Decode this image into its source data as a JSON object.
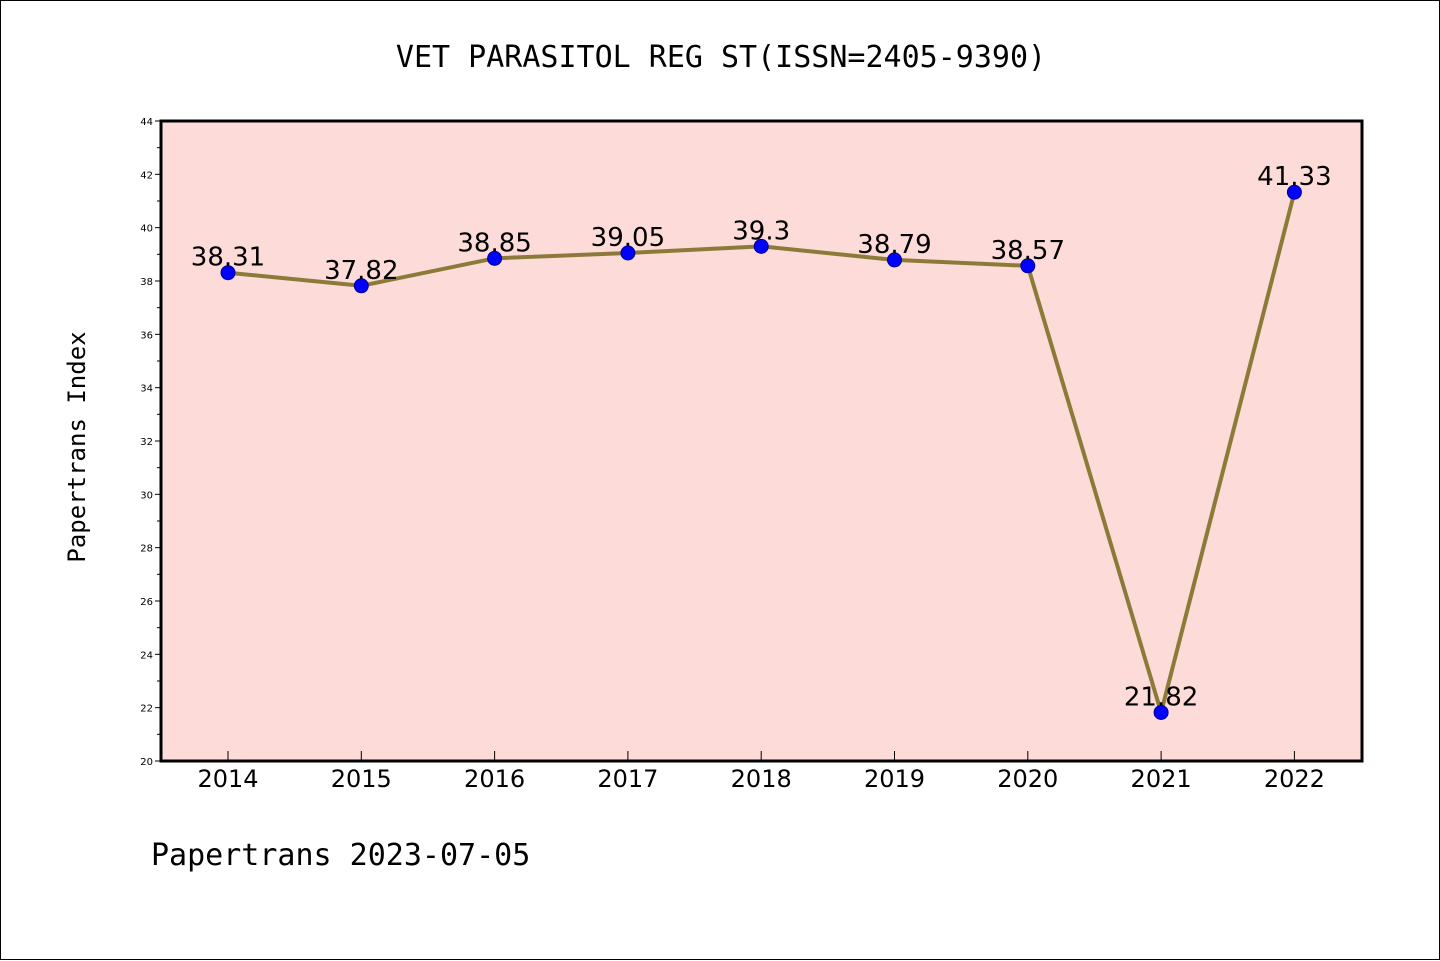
{
  "chart_data": {
    "type": "line",
    "title": "VET PARASITOL REG ST(ISSN=2405-9390)",
    "xlabel": "",
    "ylabel": "Papertrans Index",
    "categories": [
      "2014",
      "2015",
      "2016",
      "2017",
      "2018",
      "2019",
      "2020",
      "2021",
      "2022"
    ],
    "values": [
      38.31,
      37.82,
      38.85,
      39.05,
      39.3,
      38.79,
      38.57,
      21.82,
      41.33
    ],
    "value_labels": [
      "38.31",
      "37.82",
      "38.85",
      "39.05",
      "39.3",
      "38.79",
      "38.57",
      "21.82",
      "41.33"
    ],
    "ylim": [
      20,
      44
    ],
    "yticks": [
      20,
      22,
      24,
      26,
      28,
      30,
      32,
      34,
      36,
      38,
      40,
      42,
      44
    ],
    "grid": false,
    "legend": "none",
    "colors": {
      "plot_background": "#fddbd8",
      "line": "#8c7a38",
      "marker": "#0000ff",
      "marker_edge": "#00008b",
      "frame": "#000000"
    }
  },
  "footer": "Papertrans 2023-07-05"
}
